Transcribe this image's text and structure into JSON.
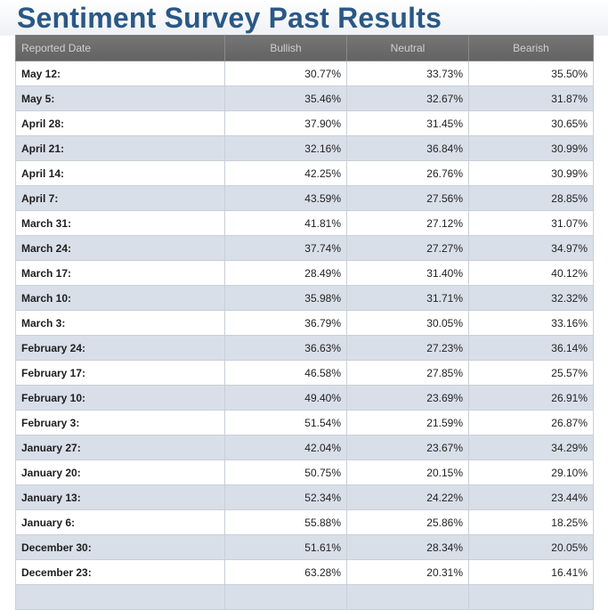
{
  "page": {
    "title": "Sentiment Survey Past Results"
  },
  "table": {
    "headers": [
      "Reported Date",
      "Bullish",
      "Neutral",
      "Bearish"
    ],
    "rows": [
      {
        "date": "May 12:",
        "bullish": "30.77%",
        "neutral": "33.73%",
        "bearish": "35.50%"
      },
      {
        "date": "May 5:",
        "bullish": "35.46%",
        "neutral": "32.67%",
        "bearish": "31.87%"
      },
      {
        "date": "April 28:",
        "bullish": "37.90%",
        "neutral": "31.45%",
        "bearish": "30.65%"
      },
      {
        "date": "April 21:",
        "bullish": "32.16%",
        "neutral": "36.84%",
        "bearish": "30.99%"
      },
      {
        "date": "April 14:",
        "bullish": "42.25%",
        "neutral": "26.76%",
        "bearish": "30.99%"
      },
      {
        "date": "April 7:",
        "bullish": "43.59%",
        "neutral": "27.56%",
        "bearish": "28.85%"
      },
      {
        "date": "March 31:",
        "bullish": "41.81%",
        "neutral": "27.12%",
        "bearish": "31.07%"
      },
      {
        "date": "March 24:",
        "bullish": "37.74%",
        "neutral": "27.27%",
        "bearish": "34.97%"
      },
      {
        "date": "March 17:",
        "bullish": "28.49%",
        "neutral": "31.40%",
        "bearish": "40.12%"
      },
      {
        "date": "March 10:",
        "bullish": "35.98%",
        "neutral": "31.71%",
        "bearish": "32.32%"
      },
      {
        "date": "March 3:",
        "bullish": "36.79%",
        "neutral": "30.05%",
        "bearish": "33.16%"
      },
      {
        "date": "February 24:",
        "bullish": "36.63%",
        "neutral": "27.23%",
        "bearish": "36.14%"
      },
      {
        "date": "February 17:",
        "bullish": "46.58%",
        "neutral": "27.85%",
        "bearish": "25.57%"
      },
      {
        "date": "February 10:",
        "bullish": "49.40%",
        "neutral": "23.69%",
        "bearish": "26.91%"
      },
      {
        "date": "February 3:",
        "bullish": "51.54%",
        "neutral": "21.59%",
        "bearish": "26.87%"
      },
      {
        "date": "January 27:",
        "bullish": "42.04%",
        "neutral": "23.67%",
        "bearish": "34.29%"
      },
      {
        "date": "January 20:",
        "bullish": "50.75%",
        "neutral": "20.15%",
        "bearish": "29.10%"
      },
      {
        "date": "January 13:",
        "bullish": "52.34%",
        "neutral": "24.22%",
        "bearish": "23.44%"
      },
      {
        "date": "January 6:",
        "bullish": "55.88%",
        "neutral": "25.86%",
        "bearish": "18.25%"
      },
      {
        "date": "December 30:",
        "bullish": "51.61%",
        "neutral": "28.34%",
        "bearish": "20.05%"
      },
      {
        "date": "December 23:",
        "bullish": "63.28%",
        "neutral": "20.31%",
        "bearish": "16.41%"
      },
      {
        "date": "",
        "bullish": "",
        "neutral": "",
        "bearish": ""
      }
    ]
  }
}
